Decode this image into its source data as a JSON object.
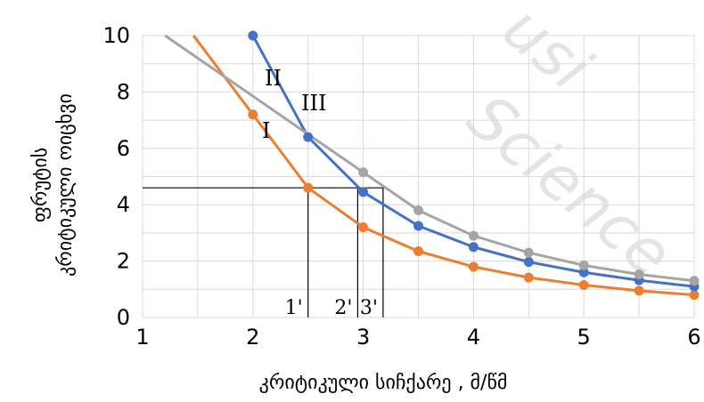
{
  "chart_data": {
    "type": "line",
    "xlabel": "კრიტიკული სიჩქარე , მ/წმ",
    "ylabel_lines": [
      "ფრუტის",
      "კრიტიკული ოიცხვი"
    ],
    "xlim": [
      1,
      6
    ],
    "ylim": [
      0,
      10
    ],
    "x_ticks": [
      "1",
      "2",
      "3",
      "4",
      "5",
      "6"
    ],
    "y_ticks": [
      "0",
      "2",
      "4",
      "6",
      "8",
      "10"
    ],
    "grid": true,
    "series": [
      {
        "name": "I",
        "color": "#ed7d31",
        "x": [
          2,
          2.5,
          3,
          3.5,
          4,
          4.5,
          5,
          5.5,
          6
        ],
        "y": [
          7.2,
          4.6,
          3.2,
          2.35,
          1.8,
          1.42,
          1.15,
          0.95,
          0.8
        ]
      },
      {
        "name": "II",
        "color": "#4472c4",
        "x": [
          2,
          2.5,
          3,
          3.5,
          4,
          4.5,
          5,
          5.5,
          6
        ],
        "y": [
          10,
          6.4,
          4.45,
          3.25,
          2.5,
          1.97,
          1.6,
          1.32,
          1.1
        ]
      },
      {
        "name": "III",
        "color": "#a5a5a5",
        "x": [
          3,
          3.5,
          4,
          4.5,
          5,
          5.5,
          6
        ],
        "y": [
          5.15,
          3.8,
          2.9,
          2.3,
          1.85,
          1.53,
          1.3
        ]
      }
    ],
    "reference_level": 4.6,
    "reference_marks": [
      {
        "label": "1'",
        "x": 2.5
      },
      {
        "label": "2'",
        "x": 2.95
      },
      {
        "label": "3'",
        "x": 3.18
      }
    ],
    "watermark": "Science"
  }
}
